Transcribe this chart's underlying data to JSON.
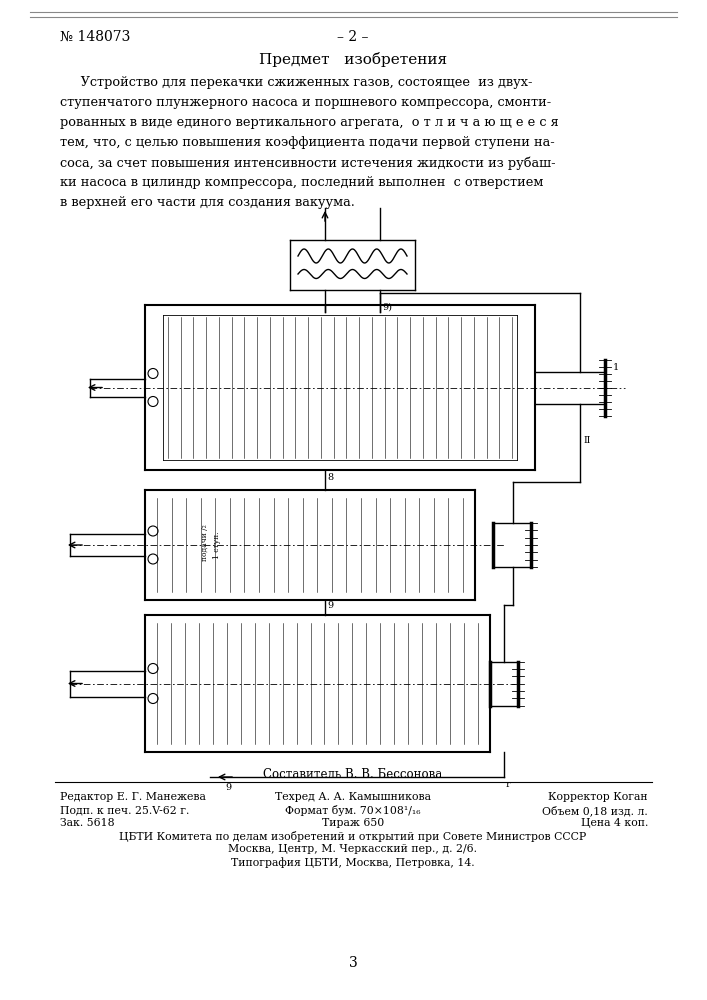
{
  "page_number_left": "№ 148073",
  "page_number_center": "– 2 –",
  "section_title": "Предмет   изобретения",
  "footer_line1_left": "Редактор Е. Г. Манежева",
  "footer_line1_center": "Техред А. А. Камышникова",
  "footer_line1_right": "Корректор Коган",
  "footer_line2_left": "Подп. к печ. 25.V-62 г.",
  "footer_line2_center": "Формат бум. 70×108¹/₁₆",
  "footer_line2_right": "Объем 0,18 изд. л.",
  "footer_line3_left": "Зак. 5618",
  "footer_line3_center": "Тираж 650",
  "footer_line3_right": "Цена 4 коп.",
  "footer_line4": "ЦБТИ Комитета по делам изобретений и открытий при Совете Министров СССР",
  "footer_line5": "Москва, Центр, М. Черкасский пер., д. 2/6.",
  "footer_line6": "Типография ЦБТИ, Москва, Петровка, 14.",
  "composer_text": "Составитель В. В. Бессонова",
  "page_num_bottom": "3",
  "bg_color": "#ffffff",
  "text_color": "#000000",
  "line_color": "#000000",
  "main_text_lines": [
    "     Устройство для перекачки сжиженных газов, состоящее  из двух-",
    "ступенчатого плунжерного насоса и поршневого компрессора, смонти-",
    "рованных в виде единого вертикального агрегата,  о т л и ч а ю щ е е с я",
    "тем, что, с целью повышения коэффициента подачи первой ступени на-",
    "соса, за счет повышения интенсивности истечения жидкости из рубаш-",
    "ки насоса в цилиндр компрессора, последний выполнен  с отверстием",
    "в верхней его части для создания вакуума."
  ]
}
